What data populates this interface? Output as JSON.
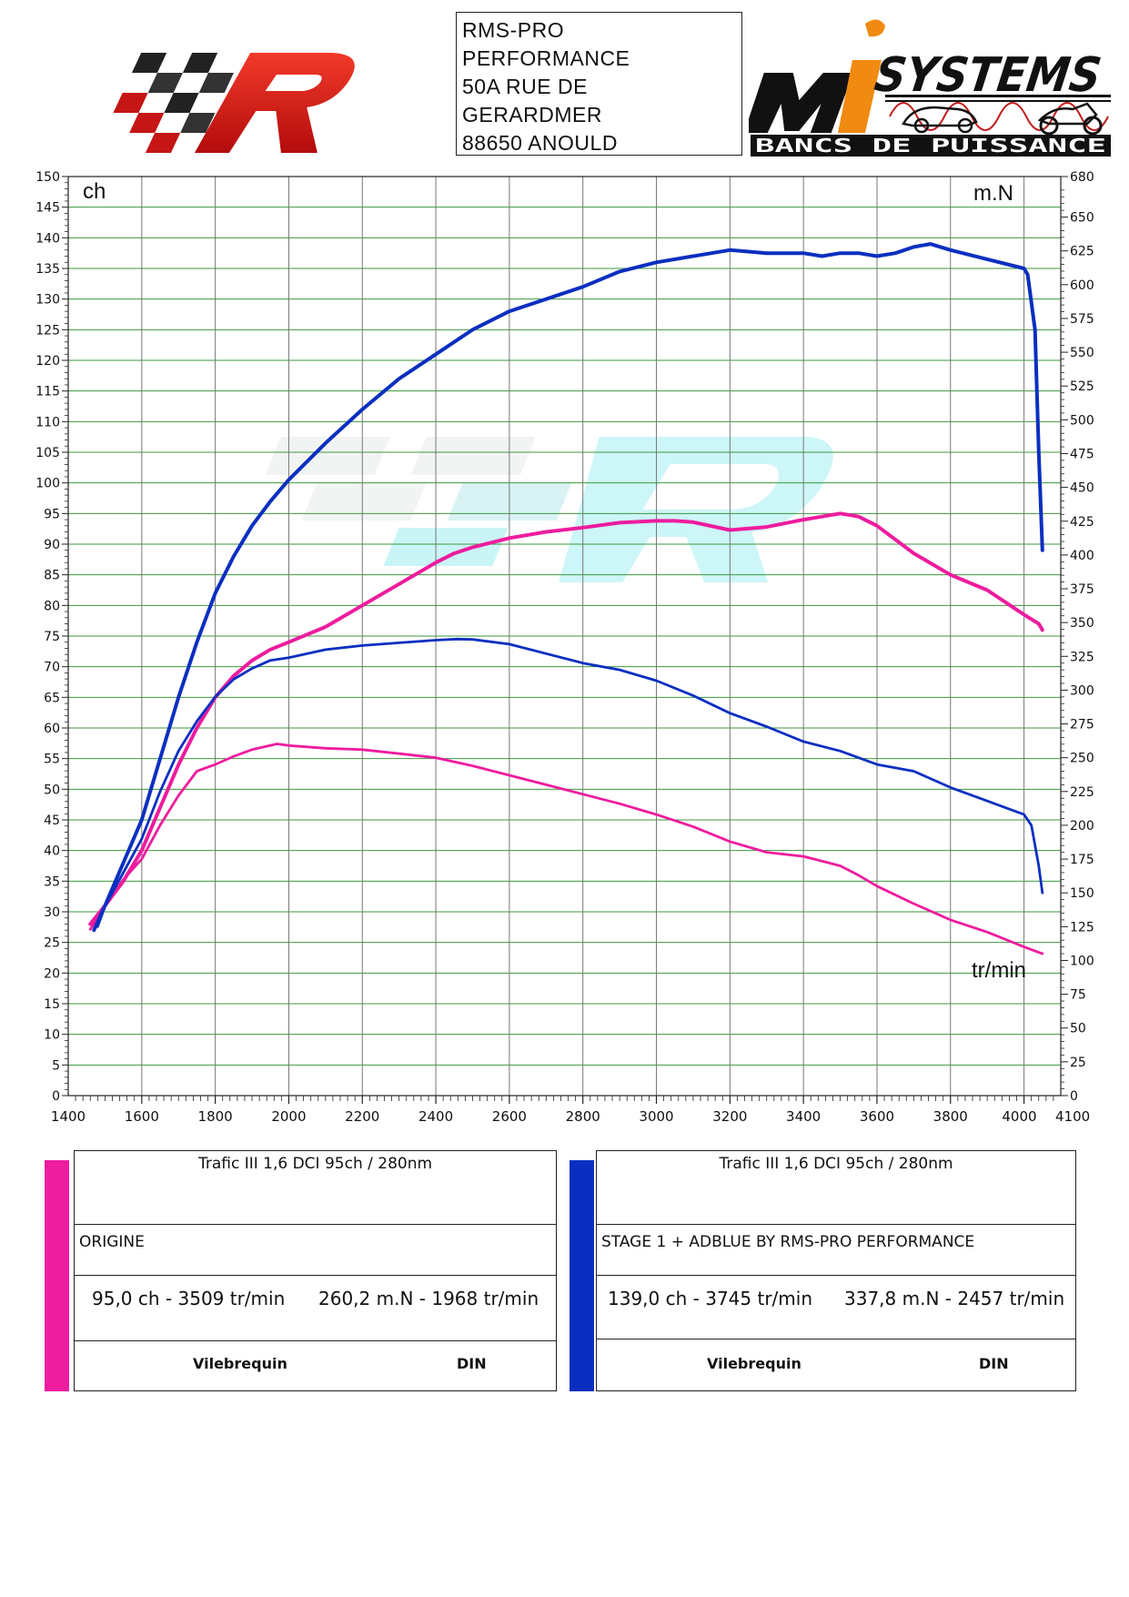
{
  "header": {
    "address_lines": [
      "RMS-PRO",
      "PERFORMANCE",
      "50A RUE DE",
      "GERARDMER",
      "88650 ANOULD"
    ],
    "logo_right_top": "SYSTEMS",
    "logo_right_bottom": "BANCS DE PUISSANCE",
    "logo_left_icon": "checkered-r-logo",
    "logo_right_icon": "mi-systems-logo",
    "watermark_icon": "checkered-r-watermark"
  },
  "legend": {
    "origine": {
      "color": "#ee1c9e",
      "vehicle": "Trafic III 1,6 DCI 95ch / 280nm",
      "config": "ORIGINE",
      "power": "95,0 ch - 3509 tr/min",
      "torque": "260,2 m.N - 1968 tr/min",
      "crank": "Vilebrequin",
      "norm": "DIN"
    },
    "stage1": {
      "color": "#0a2fc0",
      "vehicle": "Trafic III 1,6 DCI 95ch / 280nm",
      "config": "STAGE 1 + ADBLUE BY RMS-PRO PERFORMANCE",
      "power": "139,0 ch - 3745 tr/min",
      "torque": "337,8 m.N - 2457 tr/min",
      "crank": "Vilebrequin",
      "norm": "DIN"
    }
  },
  "chart_data": {
    "type": "line",
    "xlabel": "tr/min",
    "ylabel_left": "ch",
    "ylabel_right": "m.N",
    "xlim": [
      1400,
      4100
    ],
    "ylim_left": [
      0,
      150
    ],
    "ylim_right": [
      0,
      680
    ],
    "x_ticks": [
      1400,
      1600,
      1800,
      2000,
      2200,
      2400,
      2600,
      2800,
      3000,
      3200,
      3400,
      3600,
      3800,
      4000,
      4100
    ],
    "y_left_ticks": [
      0,
      5,
      10,
      15,
      20,
      25,
      30,
      35,
      40,
      45,
      50,
      55,
      60,
      65,
      70,
      75,
      80,
      85,
      90,
      95,
      100,
      105,
      110,
      115,
      120,
      125,
      130,
      135,
      140,
      145,
      150
    ],
    "y_right_ticks": [
      0,
      25,
      50,
      75,
      100,
      125,
      150,
      175,
      200,
      225,
      250,
      275,
      300,
      325,
      350,
      375,
      400,
      425,
      450,
      475,
      500,
      525,
      550,
      575,
      600,
      625,
      650,
      680
    ],
    "grid": true,
    "series": [
      {
        "name": "ORIGINE",
        "quantity": "power",
        "axis": "left",
        "color": "#ee1c9e",
        "x": [
          1460,
          1500,
          1550,
          1600,
          1650,
          1700,
          1750,
          1800,
          1850,
          1900,
          1950,
          2000,
          2100,
          2200,
          2300,
          2400,
          2450,
          2500,
          2600,
          2700,
          2800,
          2900,
          3000,
          3050,
          3100,
          3200,
          3300,
          3400,
          3500,
          3550,
          3600,
          3700,
          3800,
          3900,
          4000,
          4040,
          4050
        ],
        "y": [
          28,
          31,
          35,
          40,
          47,
          54,
          60,
          65,
          68.5,
          71,
          72.8,
          74,
          76.5,
          80,
          83.5,
          87,
          88.5,
          89.5,
          91,
          92,
          92.7,
          93.5,
          93.8,
          93.8,
          93.6,
          92.3,
          92.8,
          94,
          95,
          94.5,
          93,
          88.5,
          85,
          82.5,
          78.5,
          77,
          76
        ]
      },
      {
        "name": "ORIGINE",
        "quantity": "torque",
        "axis": "right",
        "color": "#ee1c9e",
        "x": [
          1460,
          1500,
          1550,
          1600,
          1650,
          1700,
          1750,
          1800,
          1850,
          1900,
          1968,
          2000,
          2100,
          2200,
          2300,
          2400,
          2500,
          2600,
          2700,
          2800,
          2900,
          3000,
          3100,
          3200,
          3300,
          3400,
          3500,
          3550,
          3600,
          3700,
          3800,
          3900,
          4000,
          4050
        ],
        "y": [
          123,
          140,
          160,
          175,
          200,
          222,
          240,
          245,
          251,
          256,
          260.2,
          259,
          257,
          256,
          253,
          250,
          244,
          237,
          230,
          223,
          216,
          208,
          199,
          188,
          180,
          177,
          170,
          163,
          155,
          142,
          130,
          121,
          110,
          105
        ]
      },
      {
        "name": "STAGE 1 + ADBLUE BY RMS-PRO PERFORMANCE",
        "quantity": "power",
        "axis": "left",
        "color": "#0a2fc0",
        "x": [
          1470,
          1500,
          1550,
          1600,
          1650,
          1700,
          1750,
          1800,
          1850,
          1900,
          1950,
          2000,
          2100,
          2200,
          2300,
          2400,
          2500,
          2600,
          2700,
          2800,
          2900,
          3000,
          3100,
          3200,
          3300,
          3400,
          3450,
          3500,
          3550,
          3600,
          3650,
          3700,
          3745,
          3800,
          3900,
          4000,
          4010,
          4030,
          4040,
          4050
        ],
        "y": [
          27,
          31,
          38,
          45,
          55,
          65,
          74,
          82,
          88,
          93,
          97,
          100.5,
          106.5,
          112,
          117,
          121,
          125,
          128,
          130,
          132,
          134.5,
          136,
          137,
          138,
          137.5,
          137.5,
          137,
          137.5,
          137.5,
          137,
          137.5,
          138.5,
          139,
          138,
          136.5,
          135,
          134,
          125,
          105,
          89
        ]
      },
      {
        "name": "STAGE 1 + ADBLUE BY RMS-PRO PERFORMANCE",
        "quantity": "torque",
        "axis": "right",
        "color": "#0a2fc0",
        "x": [
          1480,
          1500,
          1550,
          1600,
          1650,
          1700,
          1750,
          1800,
          1850,
          1900,
          1950,
          2000,
          2100,
          2200,
          2300,
          2400,
          2457,
          2500,
          2600,
          2700,
          2800,
          2900,
          3000,
          3100,
          3200,
          3300,
          3400,
          3500,
          3600,
          3700,
          3800,
          3900,
          4000,
          4020,
          4040,
          4050
        ],
        "y": [
          125,
          140,
          165,
          190,
          225,
          255,
          277,
          295,
          308,
          316,
          322,
          324,
          330,
          333,
          335,
          337,
          337.8,
          337.5,
          334,
          327,
          320,
          315,
          307,
          296,
          283,
          273,
          262,
          255,
          245,
          240,
          228,
          218,
          208,
          200,
          170,
          150
        ]
      }
    ]
  }
}
